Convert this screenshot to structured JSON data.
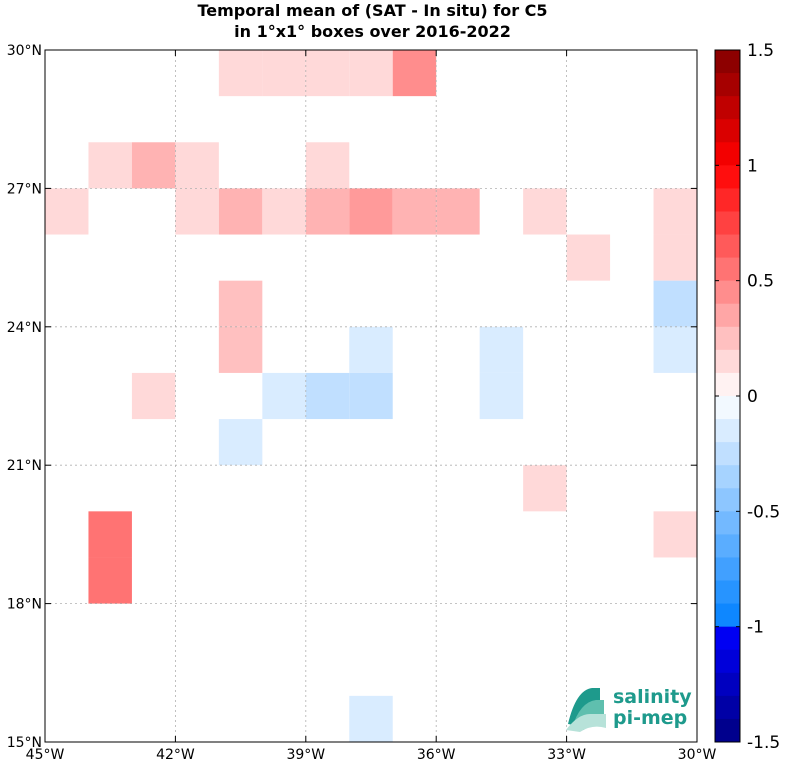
{
  "title": {
    "line1": "Temporal mean of (SAT - In situ) for C5",
    "line2": "in 1°x1° boxes over 2016-2022"
  },
  "chart_data": {
    "type": "heatmap",
    "x_label_prefix": "",
    "xlim": [
      -45,
      -30
    ],
    "ylim": [
      15,
      30
    ],
    "x_ticks": [
      {
        "value": -45,
        "label": "45°W"
      },
      {
        "value": -42,
        "label": "42°W"
      },
      {
        "value": -39,
        "label": "39°W"
      },
      {
        "value": -36,
        "label": "36°W"
      },
      {
        "value": -33,
        "label": "33°W"
      },
      {
        "value": -30,
        "label": "30°W"
      }
    ],
    "y_ticks": [
      {
        "value": 15,
        "label": "15°N"
      },
      {
        "value": 18,
        "label": "18°N"
      },
      {
        "value": 21,
        "label": "21°N"
      },
      {
        "value": 24,
        "label": "24°N"
      },
      {
        "value": 27,
        "label": "27°N"
      },
      {
        "value": 30,
        "label": "30°N"
      }
    ],
    "grid": true,
    "colorbar": {
      "range": [
        -1.5,
        1.5
      ],
      "levels": 30,
      "ticks": [
        "1.5",
        "1",
        "0.5",
        "0",
        "-0.5",
        "-1",
        "-1.5"
      ],
      "tick_values": [
        1.5,
        1,
        0.5,
        0,
        -0.5,
        -1,
        -1.5
      ]
    },
    "cells": [
      {
        "lon": -41,
        "lat": 29,
        "value": 0.15
      },
      {
        "lon": -40,
        "lat": 29,
        "value": 0.15
      },
      {
        "lon": -39,
        "lat": 29,
        "value": 0.15
      },
      {
        "lon": -38,
        "lat": 29,
        "value": 0.15
      },
      {
        "lon": -37,
        "lat": 29,
        "value": 0.45
      },
      {
        "lon": -44,
        "lat": 27,
        "value": 0.15
      },
      {
        "lon": -43,
        "lat": 27,
        "value": 0.3
      },
      {
        "lon": -42,
        "lat": 27,
        "value": 0.15
      },
      {
        "lon": -39,
        "lat": 27,
        "value": 0.15
      },
      {
        "lon": -45,
        "lat": 26,
        "value": 0.15
      },
      {
        "lon": -42,
        "lat": 26,
        "value": 0.15
      },
      {
        "lon": -41,
        "lat": 26,
        "value": 0.3
      },
      {
        "lon": -40,
        "lat": 26,
        "value": 0.15
      },
      {
        "lon": -39,
        "lat": 26,
        "value": 0.3
      },
      {
        "lon": -38,
        "lat": 26,
        "value": 0.4
      },
      {
        "lon": -37,
        "lat": 26,
        "value": 0.3
      },
      {
        "lon": -36,
        "lat": 26,
        "value": 0.3
      },
      {
        "lon": -34,
        "lat": 26,
        "value": 0.15
      },
      {
        "lon": -31,
        "lat": 26,
        "value": 0.15
      },
      {
        "lon": -33,
        "lat": 25,
        "value": 0.15
      },
      {
        "lon": -31,
        "lat": 25,
        "value": 0.15
      },
      {
        "lon": -41,
        "lat": 24,
        "value": 0.25
      },
      {
        "lon": -31,
        "lat": 24,
        "value": -0.25
      },
      {
        "lon": -41,
        "lat": 23,
        "value": 0.25
      },
      {
        "lon": -38,
        "lat": 23,
        "value": -0.15
      },
      {
        "lon": -35,
        "lat": 23,
        "value": -0.15
      },
      {
        "lon": -31,
        "lat": 23,
        "value": -0.15
      },
      {
        "lon": -43,
        "lat": 22,
        "value": 0.15
      },
      {
        "lon": -40,
        "lat": 22,
        "value": -0.15
      },
      {
        "lon": -39,
        "lat": 22,
        "value": -0.25
      },
      {
        "lon": -38,
        "lat": 22,
        "value": -0.25
      },
      {
        "lon": -35,
        "lat": 22,
        "value": -0.15
      },
      {
        "lon": -41,
        "lat": 21,
        "value": -0.15
      },
      {
        "lon": -34,
        "lat": 20,
        "value": 0.15
      },
      {
        "lon": -44,
        "lat": 19,
        "value": 0.55
      },
      {
        "lon": -31,
        "lat": 19,
        "value": 0.15
      },
      {
        "lon": -44,
        "lat": 18,
        "value": 0.55
      },
      {
        "lon": -38,
        "lat": 15,
        "value": -0.15
      }
    ]
  },
  "logo": {
    "text_line1": "salinity",
    "text_line2": "pi-mep",
    "icon": "salinity-waves-icon"
  }
}
